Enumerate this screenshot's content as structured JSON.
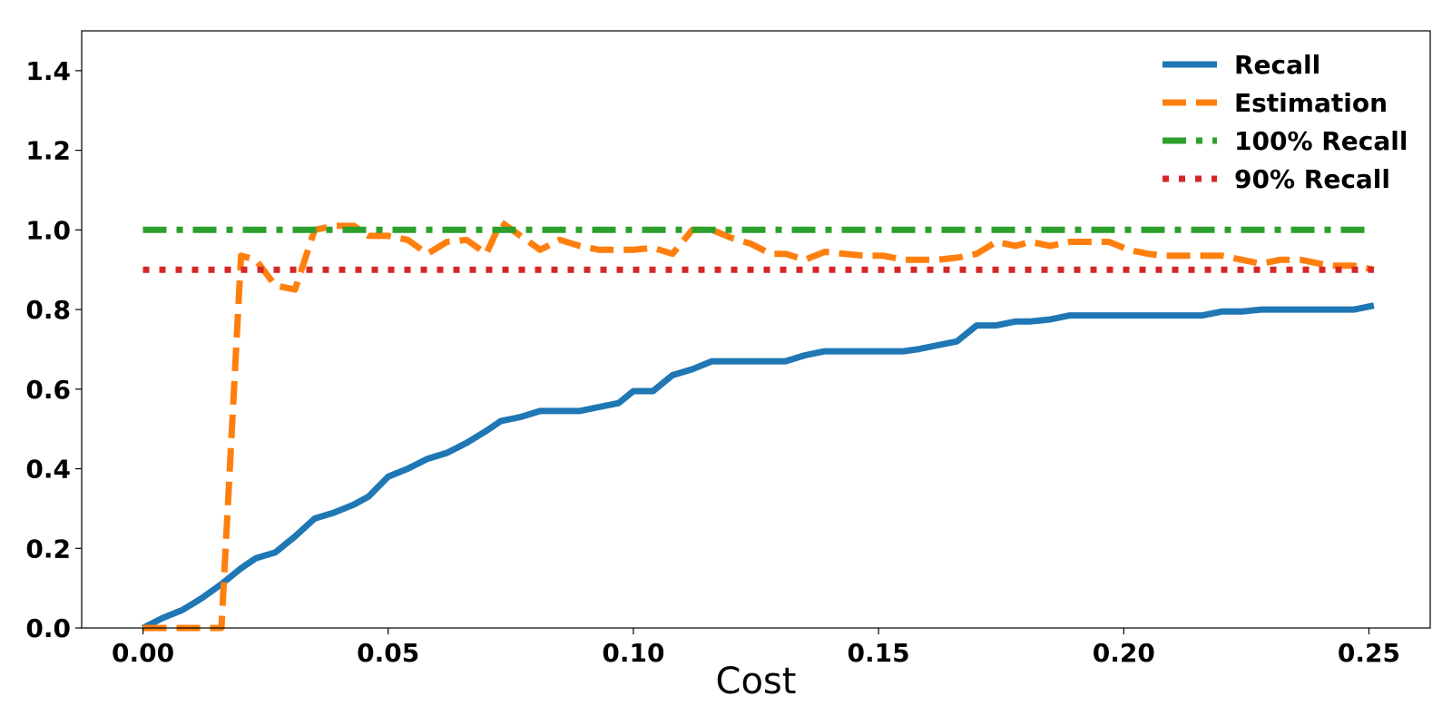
{
  "chart_data": {
    "type": "line",
    "title": "",
    "xlabel": "Cost",
    "ylabel": "",
    "xlim": [
      -0.0125,
      0.2625
    ],
    "ylim": [
      0,
      1.5
    ],
    "xticks": [
      0.0,
      0.05,
      0.1,
      0.15,
      0.2,
      0.25
    ],
    "xtick_labels": [
      "0.00",
      "0.05",
      "0.10",
      "0.15",
      "0.20",
      "0.25"
    ],
    "yticks": [
      0.0,
      0.2,
      0.4,
      0.6,
      0.8,
      1.0,
      1.2,
      1.4
    ],
    "ytick_labels": [
      "0.0",
      "0.2",
      "0.4",
      "0.6",
      "0.8",
      "1.0",
      "1.2",
      "1.4"
    ],
    "grid": false,
    "legend": "top-right",
    "series": [
      {
        "name": "Recall",
        "color": "#1f77b4",
        "dash": "solid",
        "x": [
          0.0,
          0.004,
          0.008,
          0.012,
          0.016,
          0.02,
          0.023,
          0.027,
          0.031,
          0.035,
          0.039,
          0.043,
          0.046,
          0.05,
          0.054,
          0.058,
          0.062,
          0.066,
          0.07,
          0.073,
          0.077,
          0.081,
          0.085,
          0.089,
          0.093,
          0.097,
          0.1,
          0.104,
          0.108,
          0.112,
          0.116,
          0.12,
          0.124,
          0.128,
          0.131,
          0.135,
          0.139,
          0.143,
          0.147,
          0.151,
          0.155,
          0.158,
          0.162,
          0.166,
          0.17,
          0.174,
          0.178,
          0.181,
          0.185,
          0.189,
          0.193,
          0.197,
          0.201,
          0.205,
          0.208,
          0.212,
          0.216,
          0.22,
          0.224,
          0.228,
          0.232,
          0.236,
          0.24,
          0.243,
          0.247,
          0.251
        ],
        "values": [
          0.0,
          0.025,
          0.045,
          0.075,
          0.11,
          0.15,
          0.175,
          0.19,
          0.23,
          0.275,
          0.29,
          0.31,
          0.33,
          0.38,
          0.4,
          0.425,
          0.44,
          0.465,
          0.495,
          0.52,
          0.53,
          0.545,
          0.545,
          0.545,
          0.555,
          0.565,
          0.595,
          0.595,
          0.635,
          0.65,
          0.67,
          0.67,
          0.67,
          0.67,
          0.67,
          0.685,
          0.695,
          0.695,
          0.695,
          0.695,
          0.695,
          0.7,
          0.71,
          0.72,
          0.76,
          0.76,
          0.77,
          0.77,
          0.775,
          0.785,
          0.785,
          0.785,
          0.785,
          0.785,
          0.785,
          0.785,
          0.785,
          0.795,
          0.795,
          0.8,
          0.8,
          0.8,
          0.8,
          0.8,
          0.8,
          0.81
        ]
      },
      {
        "name": "Estimation",
        "color": "#ff7f0e",
        "dash": "dashed",
        "x": [
          0.0,
          0.004,
          0.008,
          0.012,
          0.016,
          0.02,
          0.023,
          0.027,
          0.031,
          0.035,
          0.039,
          0.043,
          0.046,
          0.05,
          0.054,
          0.058,
          0.062,
          0.066,
          0.07,
          0.073,
          0.077,
          0.081,
          0.085,
          0.089,
          0.093,
          0.097,
          0.1,
          0.104,
          0.108,
          0.112,
          0.116,
          0.12,
          0.124,
          0.128,
          0.131,
          0.135,
          0.139,
          0.143,
          0.147,
          0.151,
          0.155,
          0.158,
          0.162,
          0.166,
          0.17,
          0.174,
          0.178,
          0.181,
          0.185,
          0.189,
          0.193,
          0.197,
          0.201,
          0.205,
          0.208,
          0.212,
          0.216,
          0.22,
          0.224,
          0.228,
          0.232,
          0.236,
          0.24,
          0.243,
          0.247,
          0.251
        ],
        "values": [
          0.0,
          0.0,
          0.0,
          0.0,
          0.0,
          0.935,
          0.925,
          0.86,
          0.85,
          1.0,
          1.01,
          1.01,
          0.985,
          0.985,
          0.975,
          0.94,
          0.97,
          0.975,
          0.94,
          1.02,
          0.985,
          0.95,
          0.975,
          0.96,
          0.95,
          0.95,
          0.95,
          0.955,
          0.94,
          1.0,
          1.0,
          0.98,
          0.965,
          0.94,
          0.94,
          0.925,
          0.945,
          0.94,
          0.935,
          0.935,
          0.925,
          0.925,
          0.925,
          0.93,
          0.94,
          0.97,
          0.96,
          0.97,
          0.96,
          0.97,
          0.97,
          0.97,
          0.95,
          0.94,
          0.935,
          0.935,
          0.935,
          0.935,
          0.925,
          0.915,
          0.925,
          0.925,
          0.915,
          0.91,
          0.91,
          0.9
        ]
      },
      {
        "name": "100% Recall",
        "color": "#2ca02c",
        "dash": "dashdot",
        "x": [
          0.0,
          0.251
        ],
        "values": [
          1.0,
          1.0
        ]
      },
      {
        "name": "90% Recall",
        "color": "#d62728",
        "dash": "dotted",
        "x": [
          0.0,
          0.251
        ],
        "values": [
          0.9,
          0.9
        ]
      }
    ]
  }
}
